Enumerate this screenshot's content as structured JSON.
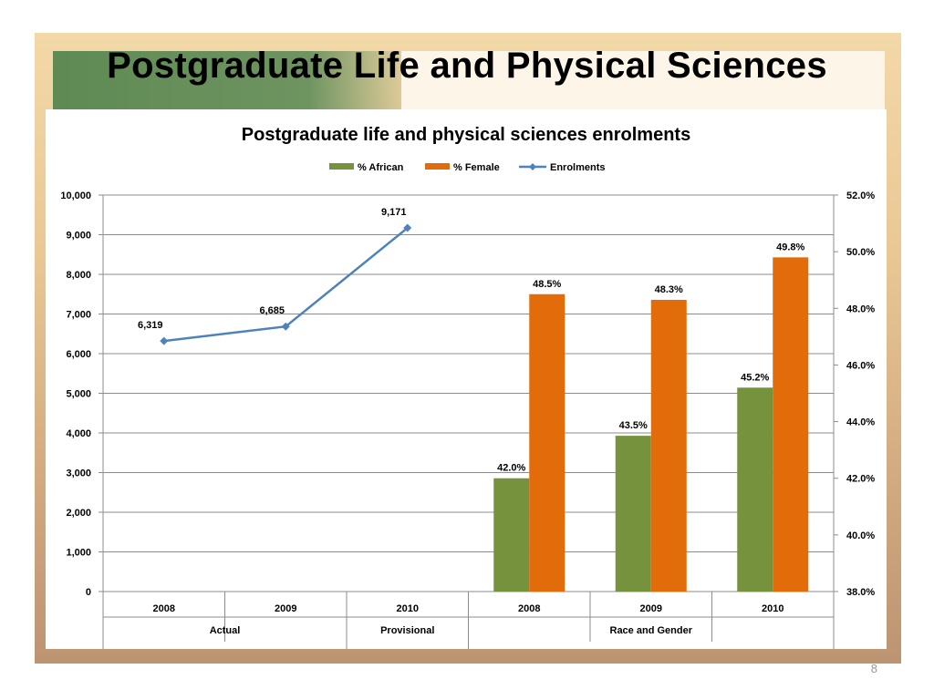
{
  "slide": {
    "title": "Postgraduate Life and Physical Sciences",
    "page_number": "8"
  },
  "chart_data": {
    "type": "bar",
    "title": "Postgraduate life and physical sciences enrolments",
    "legend_position": "top",
    "grid": true,
    "legend": [
      "% African",
      "% Female",
      "Enrolments"
    ],
    "categories": [
      "2008",
      "2009",
      "2010",
      "2008",
      "2009",
      "2010"
    ],
    "groups": [
      {
        "label": "Actual",
        "categories": [
          "2008",
          "2009"
        ]
      },
      {
        "label": "Provisional",
        "categories": [
          "2010"
        ]
      },
      {
        "label": "Race and Gender",
        "categories": [
          "2008",
          "2009",
          "2010"
        ]
      }
    ],
    "y_left": {
      "ylim": [
        0,
        10000
      ],
      "ticks": [
        "0",
        "1,000",
        "2,000",
        "3,000",
        "4,000",
        "5,000",
        "6,000",
        "7,000",
        "8,000",
        "9,000",
        "10,000"
      ]
    },
    "y_right": {
      "ylim": [
        38.0,
        52.0
      ],
      "ticks": [
        "38.0%",
        "40.0%",
        "42.0%",
        "44.0%",
        "46.0%",
        "48.0%",
        "50.0%",
        "52.0%"
      ]
    },
    "series": [
      {
        "name": "% African",
        "kind": "bar",
        "axis": "right",
        "color": "#76923c",
        "values": [
          null,
          null,
          null,
          42.0,
          43.5,
          45.2
        ],
        "labels": [
          null,
          null,
          null,
          "42.0%",
          "43.5%",
          "45.2%"
        ]
      },
      {
        "name": "% Female",
        "kind": "bar",
        "axis": "right",
        "color": "#e36c0a",
        "values": [
          null,
          null,
          null,
          48.5,
          48.3,
          49.8
        ],
        "labels": [
          null,
          null,
          null,
          "48.5%",
          "48.3%",
          "49.8%"
        ]
      },
      {
        "name": "Enrolments",
        "kind": "line",
        "axis": "left",
        "color": "#4f81bd",
        "values": [
          6319,
          6685,
          9171,
          null,
          null,
          null
        ],
        "labels": [
          "6,319",
          "6,685",
          "9,171",
          null,
          null,
          null
        ]
      }
    ]
  }
}
